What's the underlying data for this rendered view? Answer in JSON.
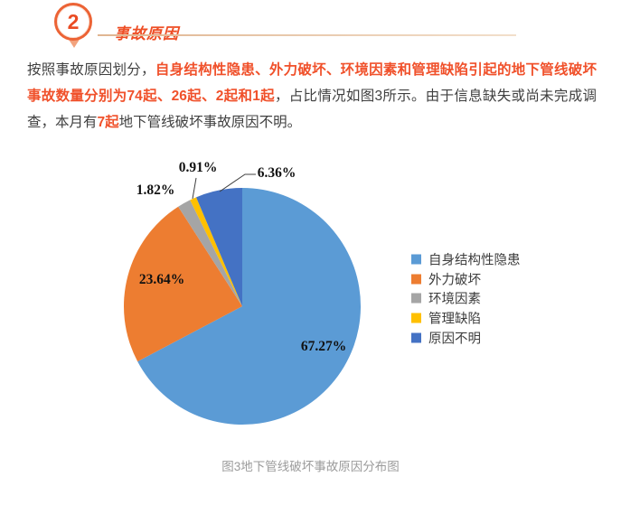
{
  "header": {
    "number": "2",
    "title": "事故原因"
  },
  "paragraph": {
    "seg1": "按照事故原因划分，",
    "seg2": "自身结构性隐患、外力破坏、环境因素和管理缺陷引起的地下管线破坏事故数量分别为74起、26起、2起和1起",
    "seg3": "，占比情况如图3所示。由于信息缺失或尚未完成调查，本月有",
    "seg4": "7起",
    "seg5": "地下管线破坏事故原因不明。"
  },
  "chart_data": {
    "type": "pie",
    "title": "图3地下管线破坏事故原因分布图",
    "categories": [
      "自身结构性隐患",
      "外力破坏",
      "环境因素",
      "管理缺陷",
      "原因不明"
    ],
    "values": [
      67.27,
      23.64,
      1.82,
      0.91,
      6.36
    ],
    "counts": [
      74,
      26,
      2,
      1,
      7
    ],
    "labels": [
      "67.27%",
      "23.64%",
      "1.82%",
      "0.91%",
      "6.36%"
    ],
    "colors": [
      "#5B9BD5",
      "#ED7D31",
      "#A5A5A5",
      "#FFC000",
      "#4472C4"
    ],
    "legend_position": "right",
    "start_angle_deg": 0,
    "direction": "clockwise"
  },
  "caption": "图3地下管线破坏事故原因分布图",
  "colors": {
    "accent": "#F0512B",
    "title": "#EE4E25",
    "body_text": "#3F3F3F",
    "caption_text": "#9B9B9B",
    "divider": "#E0B591"
  }
}
